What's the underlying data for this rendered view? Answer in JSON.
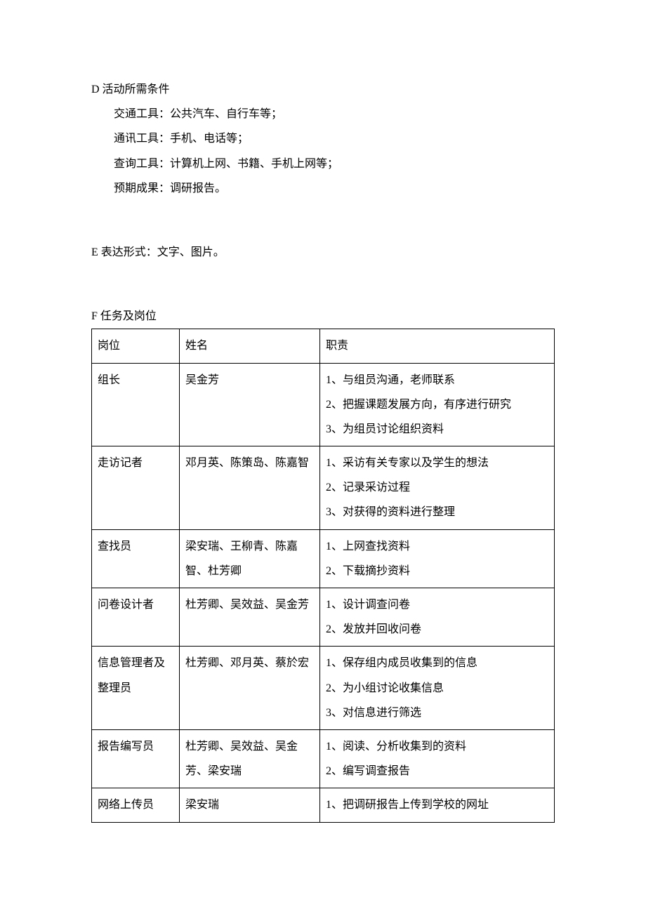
{
  "sectionD": {
    "title": "D 活动所需条件",
    "items": [
      "交通工具：公共汽车、自行车等；",
      "通讯工具：手机、电话等；",
      "查询工具：计算机上网、书籍、手机上网等；",
      "预期成果：调研报告。"
    ]
  },
  "sectionE": {
    "title": "E 表达形式：文字、图片。"
  },
  "sectionF": {
    "title": "F 任务及岗位",
    "table": {
      "headers": [
        "岗位",
        "姓名",
        "职责"
      ],
      "rows": [
        {
          "position": "组长",
          "names": "吴金芳",
          "duties": "1、与组员沟通，老师联系\n2、把握课题发展方向，有序进行研究\n3、为组员讨论组织资料"
        },
        {
          "position": "走访记者",
          "names": "邓月英、陈策岛、陈嘉智",
          "duties": "1、采访有关专家以及学生的想法\n2、记录采访过程\n3、对获得的资料进行整理"
        },
        {
          "position": "查找员",
          "names": "梁安瑞、王柳青、陈嘉智、杜芳卿",
          "duties": "1、上网查找资料\n2、下载摘抄资料"
        },
        {
          "position": "问卷设计者",
          "names": "杜芳卿、吴效益、吴金芳",
          "duties": "1、设计调查问卷\n2、发放并回收问卷"
        },
        {
          "position": "信息管理者及整理员",
          "names": "杜芳卿、邓月英、蔡於宏",
          "duties": "1、保存组内成员收集到的信息\n2、为小组讨论收集信息\n3、对信息进行筛选"
        },
        {
          "position": "报告编写员",
          "names": "杜芳卿、吴效益、吴金芳、梁安瑞",
          "duties": "1、阅读、分析收集到的资料\n2、编写调查报告"
        },
        {
          "position": "网络上传员",
          "names": "梁安瑞",
          "duties": "1、把调研报告上传到学校的网址"
        }
      ]
    }
  }
}
